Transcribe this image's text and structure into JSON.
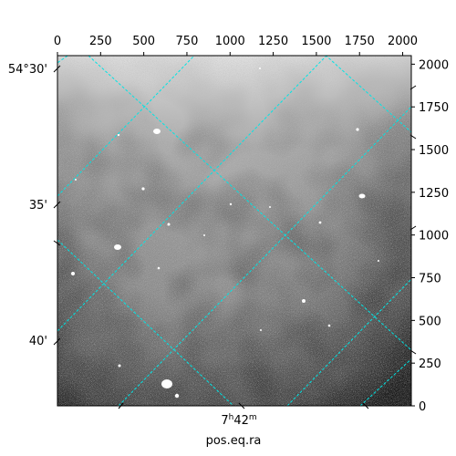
{
  "figure": {
    "ra_tick_label": {
      "hours": "7",
      "h_symbol": "h",
      "minutes": "42",
      "m_symbol": "m"
    },
    "x_axis_label": "pos.eq.ra",
    "dec_tick_labels": [
      "54°30'",
      "35'",
      "40'"
    ]
  },
  "chart_data": {
    "type": "heatmap",
    "title": "",
    "xlabel": "pos.eq.ra",
    "ylabel": "",
    "top_axis": {
      "ticks": [
        0,
        250,
        500,
        750,
        1000,
        1250,
        1500,
        1750,
        2000
      ],
      "range": [
        0,
        2050
      ]
    },
    "right_axis": {
      "ticks": [
        0,
        250,
        500,
        750,
        1000,
        1250,
        1500,
        1750,
        2000
      ],
      "range": [
        0,
        2050
      ]
    },
    "world_axes": {
      "ra_ticks": [
        "7h42m"
      ],
      "dec_ticks": [
        "54°30'",
        "35'",
        "40'"
      ]
    },
    "colormap": "gray",
    "grid": true,
    "grid_color": "#00e5e5",
    "grid_style": "dashed"
  }
}
